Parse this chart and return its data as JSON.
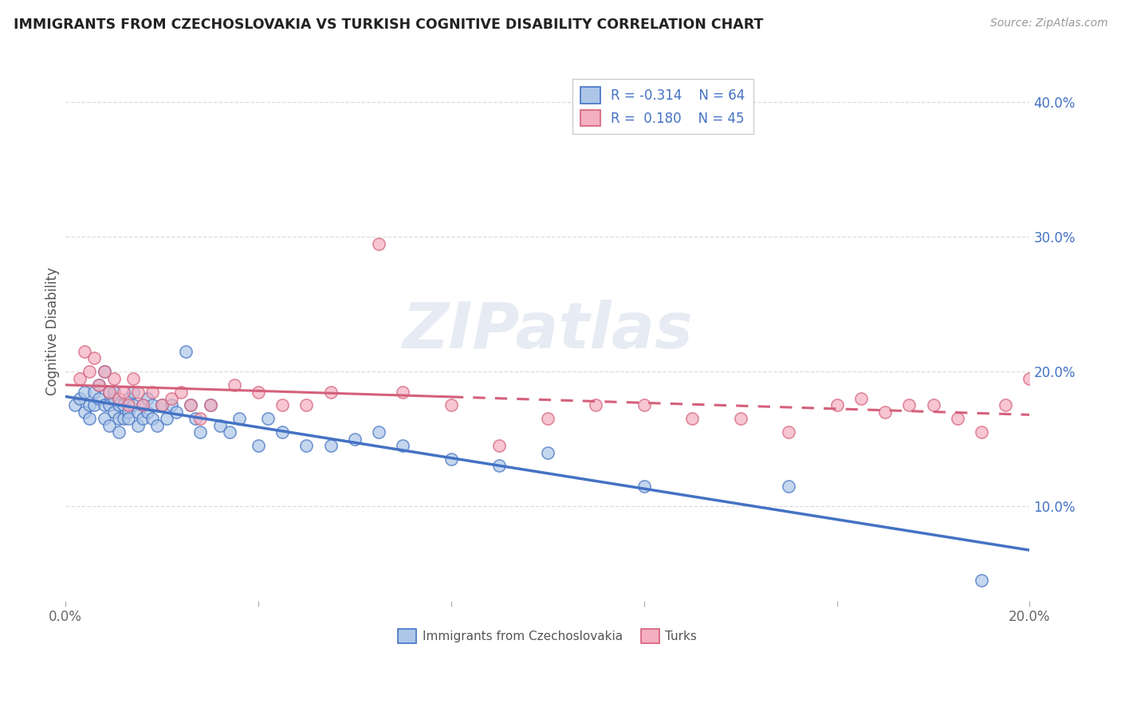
{
  "title": "IMMIGRANTS FROM CZECHOSLOVAKIA VS TURKISH COGNITIVE DISABILITY CORRELATION CHART",
  "source": "Source: ZipAtlas.com",
  "ylabel": "Cognitive Disability",
  "xlim": [
    0.0,
    0.2
  ],
  "ylim": [
    0.03,
    0.43
  ],
  "xticks": [
    0.0,
    0.04,
    0.08,
    0.12,
    0.16,
    0.2
  ],
  "xticklabels": [
    "0.0%",
    "",
    "",
    "",
    "",
    "20.0%"
  ],
  "yticks": [
    0.1,
    0.2,
    0.3,
    0.4
  ],
  "yticklabels": [
    "10.0%",
    "20.0%",
    "30.0%",
    "40.0%"
  ],
  "color_blue": "#adc6e8",
  "color_blue_dark": "#4472c4",
  "color_pink": "#f4afc0",
  "color_pink_dark": "#d4607a",
  "watermark": "ZIPatlas",
  "blue_scatter_x": [
    0.002,
    0.003,
    0.004,
    0.004,
    0.005,
    0.005,
    0.006,
    0.006,
    0.007,
    0.007,
    0.008,
    0.008,
    0.008,
    0.009,
    0.009,
    0.009,
    0.01,
    0.01,
    0.01,
    0.011,
    0.011,
    0.011,
    0.012,
    0.012,
    0.013,
    0.013,
    0.013,
    0.014,
    0.014,
    0.015,
    0.015,
    0.016,
    0.016,
    0.017,
    0.017,
    0.018,
    0.018,
    0.019,
    0.02,
    0.021,
    0.022,
    0.023,
    0.025,
    0.026,
    0.027,
    0.028,
    0.03,
    0.032,
    0.034,
    0.036,
    0.04,
    0.042,
    0.045,
    0.05,
    0.055,
    0.06,
    0.065,
    0.07,
    0.08,
    0.09,
    0.1,
    0.12,
    0.15,
    0.19
  ],
  "blue_scatter_y": [
    0.175,
    0.18,
    0.17,
    0.185,
    0.175,
    0.165,
    0.185,
    0.175,
    0.19,
    0.18,
    0.2,
    0.175,
    0.165,
    0.185,
    0.175,
    0.16,
    0.18,
    0.17,
    0.185,
    0.175,
    0.165,
    0.155,
    0.175,
    0.165,
    0.17,
    0.18,
    0.165,
    0.175,
    0.185,
    0.17,
    0.16,
    0.175,
    0.165,
    0.18,
    0.17,
    0.175,
    0.165,
    0.16,
    0.175,
    0.165,
    0.175,
    0.17,
    0.215,
    0.175,
    0.165,
    0.155,
    0.175,
    0.16,
    0.155,
    0.165,
    0.145,
    0.165,
    0.155,
    0.145,
    0.145,
    0.15,
    0.155,
    0.145,
    0.135,
    0.13,
    0.14,
    0.115,
    0.115,
    0.045
  ],
  "pink_scatter_x": [
    0.003,
    0.004,
    0.005,
    0.006,
    0.007,
    0.008,
    0.009,
    0.01,
    0.011,
    0.012,
    0.013,
    0.014,
    0.015,
    0.016,
    0.018,
    0.02,
    0.022,
    0.024,
    0.026,
    0.028,
    0.03,
    0.035,
    0.04,
    0.045,
    0.05,
    0.055,
    0.065,
    0.07,
    0.08,
    0.09,
    0.1,
    0.11,
    0.12,
    0.13,
    0.14,
    0.15,
    0.16,
    0.165,
    0.17,
    0.175,
    0.18,
    0.185,
    0.19,
    0.195,
    0.2
  ],
  "pink_scatter_y": [
    0.195,
    0.215,
    0.2,
    0.21,
    0.19,
    0.2,
    0.185,
    0.195,
    0.18,
    0.185,
    0.175,
    0.195,
    0.185,
    0.175,
    0.185,
    0.175,
    0.18,
    0.185,
    0.175,
    0.165,
    0.175,
    0.19,
    0.185,
    0.175,
    0.175,
    0.185,
    0.295,
    0.185,
    0.175,
    0.145,
    0.165,
    0.175,
    0.175,
    0.165,
    0.165,
    0.155,
    0.175,
    0.18,
    0.17,
    0.175,
    0.175,
    0.165,
    0.155,
    0.175,
    0.195
  ],
  "background_color": "#ffffff",
  "grid_color": "#dddddd"
}
